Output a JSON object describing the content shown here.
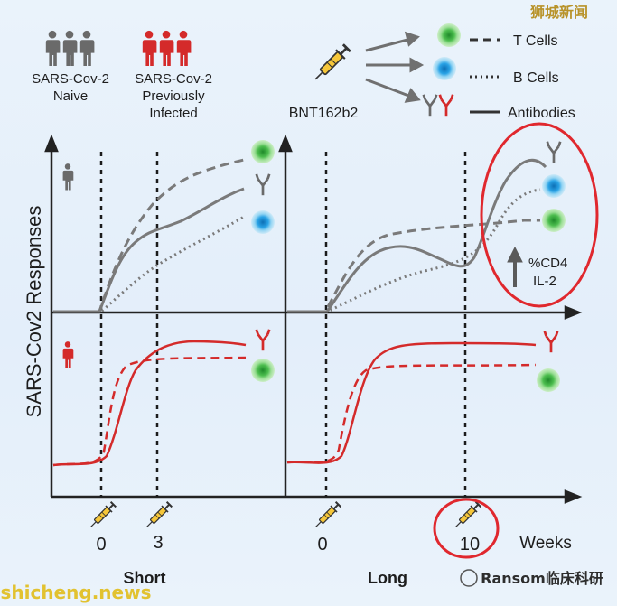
{
  "watermark_top_right": "狮城新闻",
  "watermark_bottom_left": "shicheng.news",
  "watermark_bottom_right": "Ransom临床科研",
  "cohorts": {
    "naive": {
      "line1": "SARS-Cov-2",
      "line2": "Naive"
    },
    "infected": {
      "line1": "SARS-Cov-2",
      "line2": "Previously",
      "line3": "Infected"
    }
  },
  "vaccine": {
    "label": "BNT162b2"
  },
  "legend": [
    {
      "label": "T Cells",
      "style": "dashed"
    },
    {
      "label": "B Cells",
      "style": "dotted"
    },
    {
      "label": "Antibodies",
      "style": "solid"
    }
  ],
  "y_axis_label": "SARS-Cov2 Responses",
  "annotation": {
    "line1": "%CD4",
    "line2": "IL-2"
  },
  "x_ticks": {
    "short_0": "0",
    "short_3": "3",
    "long_0": "0",
    "long_10": "10"
  },
  "x_unit": "Weeks",
  "panels": {
    "short": "Short",
    "long": "Long"
  },
  "colors": {
    "naive": "#6a6a6a",
    "infected": "#d42a2a",
    "highlight_circle": "#e0282e",
    "t_cell": "#5cc45a",
    "b_cell": "#3aa6e0"
  }
}
